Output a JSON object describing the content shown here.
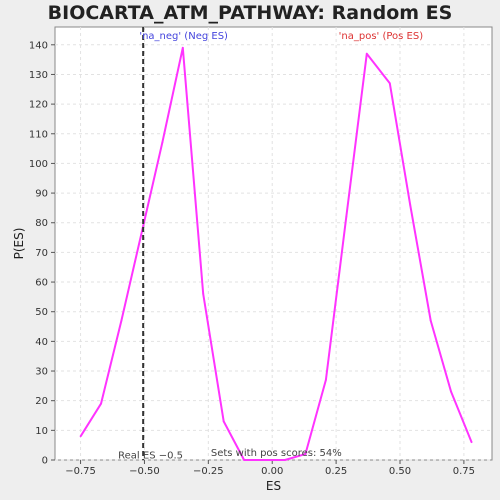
{
  "chart_data": {
    "type": "line",
    "title": "BIOCARTA_ATM_PATHWAY: Random ES distribution",
    "xlabel": "ES",
    "ylabel": "P(ES)",
    "xlim": [
      -0.85,
      0.86
    ],
    "ylim": [
      0,
      146
    ],
    "xticks": [
      -0.75,
      -0.5,
      -0.25,
      0.0,
      0.25,
      0.5,
      0.75
    ],
    "xtick_labels": [
      "−0.75",
      "−0.50",
      "−0.25",
      "0.00",
      "0.25",
      "0.50",
      "0.75"
    ],
    "yticks": [
      0,
      10,
      20,
      30,
      40,
      50,
      60,
      70,
      80,
      90,
      100,
      110,
      120,
      130,
      140
    ],
    "ytick_labels": [
      "0",
      "10",
      "20",
      "30",
      "40",
      "50",
      "60",
      "70",
      "80",
      "90",
      "100",
      "110",
      "120",
      "130",
      "140"
    ],
    "grid": true,
    "series": [
      {
        "color": "#ff33ff",
        "x": [
          -0.75,
          -0.67,
          -0.59,
          -0.51,
          -0.43,
          -0.35,
          -0.27,
          -0.19,
          -0.11,
          -0.03,
          0.05,
          0.13,
          0.21,
          0.29,
          0.37,
          0.46,
          0.54,
          0.62,
          0.7,
          0.78
        ],
        "y": [
          8,
          19,
          47,
          77,
          107,
          139,
          56,
          13,
          0,
          0,
          0,
          2,
          27,
          82,
          137,
          127,
          86,
          47,
          23,
          6
        ]
      }
    ],
    "real_es": {
      "x": -0.505,
      "label": "Real ES −0.5",
      "color": "#333333"
    },
    "annotations": [
      {
        "text": "'na_neg' (Neg ES)",
        "color": "#4444dd",
        "x": -0.52,
        "y": 142
      },
      {
        "text": "'na_pos' (Pos ES)",
        "color": "#dd3333",
        "x": 0.26,
        "y": 142
      },
      {
        "text": "Sets with pos scores: 54%",
        "color": "#444444",
        "x": -0.24,
        "y": 1.3
      }
    ]
  }
}
